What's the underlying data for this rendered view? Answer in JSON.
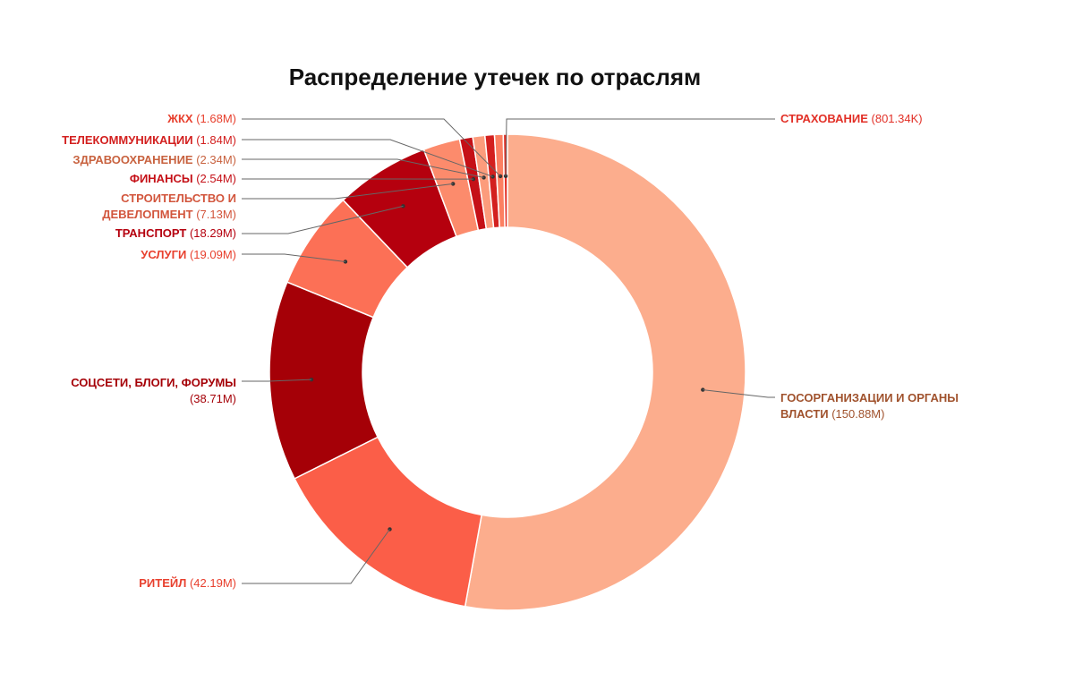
{
  "chart_data": {
    "type": "pie",
    "title": "Распределение утечек по отраслям",
    "slices": [
      {
        "label": "ГОСОРГАНИЗАЦИИ И ОРГАНЫ ВЛАСТИ",
        "value_label": "(150.88M)",
        "value": 150.88,
        "color": "#fcad8d",
        "text_color": "#a0522d"
      },
      {
        "label": "РИТЕЙЛ",
        "value_label": "(42.19M)",
        "value": 42.19,
        "color": "#fb5e48",
        "text_color": "#e8402e"
      },
      {
        "label": "СОЦСЕТИ, БЛОГИ, ФОРУМЫ",
        "value_label": "(38.71M)",
        "value": 38.71,
        "color": "#a50007",
        "text_color": "#a50007"
      },
      {
        "label": "УСЛУГИ",
        "value_label": "(19.09M)",
        "value": 19.09,
        "color": "#fc7056",
        "text_color": "#e8402e"
      },
      {
        "label": "ТРАНСПОРТ",
        "value_label": "(18.29M)",
        "value": 18.29,
        "color": "#b5000e",
        "text_color": "#b5000e"
      },
      {
        "label": "СТРОИТЕЛЬСТВО И ДЕВЕЛОПМЕНТ",
        "value_label": "(7.13M)",
        "value": 7.13,
        "color": "#fc8b6c",
        "text_color": "#d2553c"
      },
      {
        "label": "ФИНАНСЫ",
        "value_label": "(2.54M)",
        "value": 2.54,
        "color": "#c51017",
        "text_color": "#c51017"
      },
      {
        "label": "ЗДРАВООХРАНЕНИЕ",
        "value_label": "(2.34M)",
        "value": 2.34,
        "color": "#fc9c7c",
        "text_color": "#c8623f"
      },
      {
        "label": "ТЕЛЕКОММУНИКАЦИИ",
        "value_label": "(1.84M)",
        "value": 1.84,
        "color": "#d3201f",
        "text_color": "#d3201f"
      },
      {
        "label": "ЖКХ",
        "value_label": "(1.68M)",
        "value": 1.68,
        "color": "#fc8062",
        "text_color": "#e8402e"
      },
      {
        "label": "СТРАХОВАНИЕ",
        "value_label": "(801.34K)",
        "value": 0.80134,
        "color": "#e23027",
        "text_color": "#e23027"
      }
    ]
  }
}
